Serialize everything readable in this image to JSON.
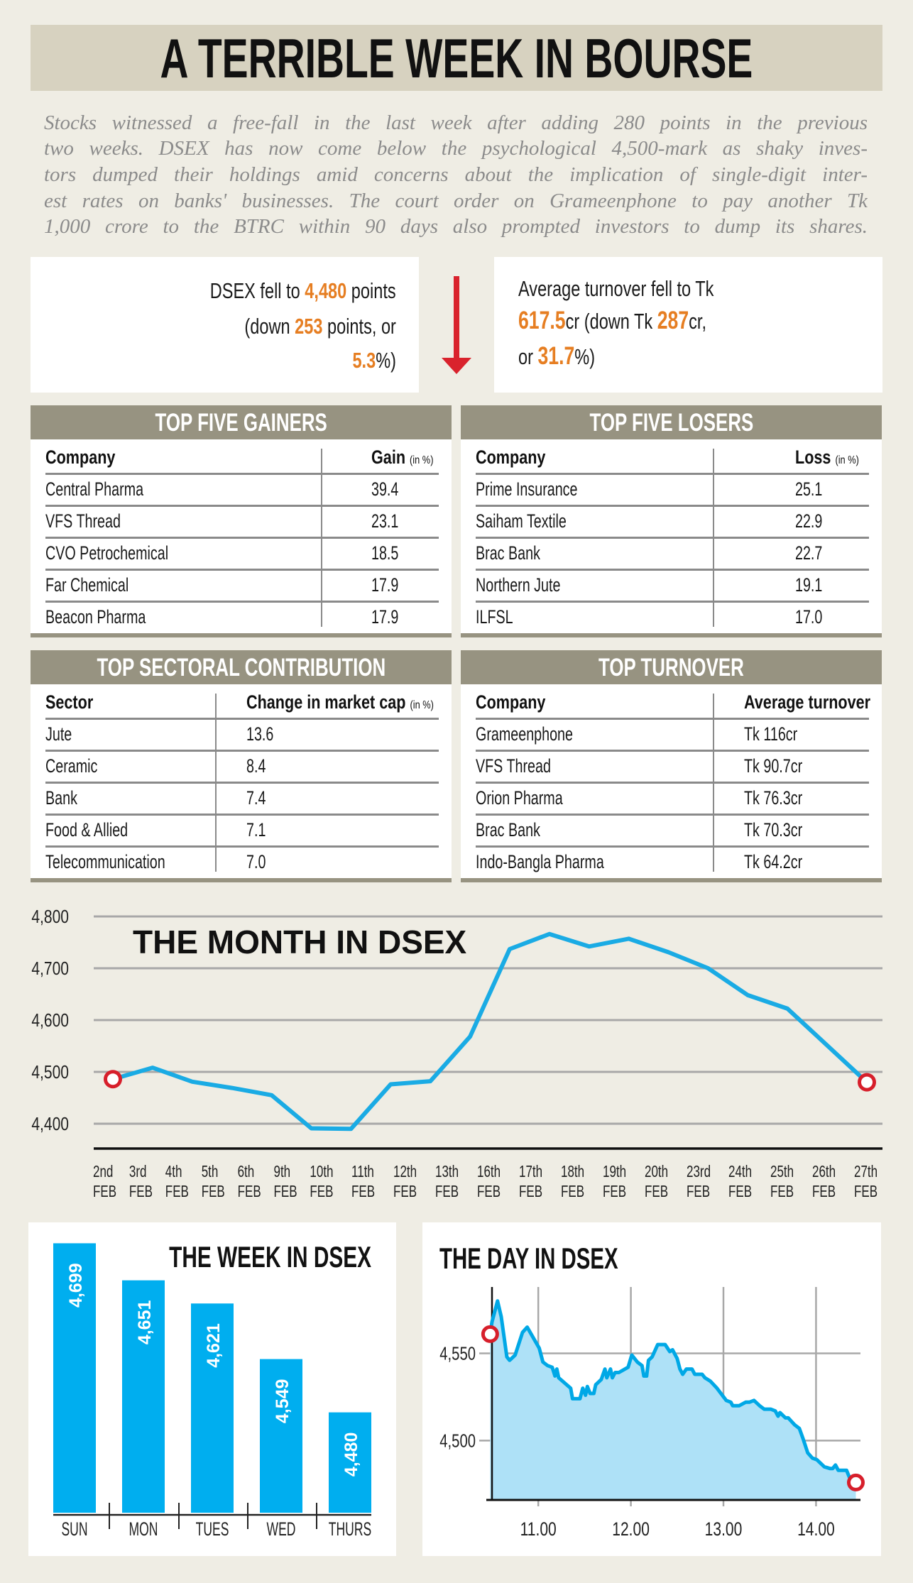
{
  "title": "A TERRIBLE WEEK IN BOURSE",
  "intro_lines": [
    "Stocks witnessed a free-fall in the last week after adding 280 points in the previous",
    "two weeks. DSEX has now come below the psychological 4,500-mark as shaky inves-",
    "tors dumped their holdings amid concerns about the implication of single-digit inter-",
    "est rates on banks' businesses. The court order on Grameenphone to pay another Tk",
    "1,000 crore to the BTRC within 90 days also prompted investors to dump its shares."
  ],
  "stats": {
    "dsex": {
      "l1_pre": "DSEX fell to ",
      "l1_num": "4,480",
      "l1_post": " points",
      "l2_pre": "(down ",
      "l2_num": "253",
      "l2_post": " points, or",
      "l3_num": "5.3",
      "l3_post": "%)"
    },
    "turnover": {
      "l1": "Average turnover fell to Tk",
      "l2_num1": "617.5",
      "l2_mid": "cr (down Tk ",
      "l2_num2": "287",
      "l2_post": "cr,",
      "l3_pre": "or ",
      "l3_num": "31.7",
      "l3_post": "%)"
    }
  },
  "tables": {
    "gainers": {
      "title": "TOP FIVE GAINERS",
      "col1": "Company",
      "col2": "Gain",
      "col2_unit": "(in %)",
      "rows": [
        {
          "name": "Central Pharma",
          "value": "39.4"
        },
        {
          "name": "VFS Thread",
          "value": "23.1"
        },
        {
          "name": "CVO Petrochemical",
          "value": "18.5"
        },
        {
          "name": "Far Chemical",
          "value": "17.9"
        },
        {
          "name": "Beacon Pharma",
          "value": "17.9"
        }
      ]
    },
    "losers": {
      "title": "TOP FIVE LOSERS",
      "col1": "Company",
      "col2": "Loss",
      "col2_unit": "(in %)",
      "rows": [
        {
          "name": "Prime Insurance",
          "value": "25.1"
        },
        {
          "name": "Saiham Textile",
          "value": "22.9"
        },
        {
          "name": "Brac Bank",
          "value": "22.7"
        },
        {
          "name": "Northern Jute",
          "value": "19.1"
        },
        {
          "name": "ILFSL",
          "value": "17.0"
        }
      ]
    },
    "sectoral": {
      "title": "TOP SECTORAL CONTRIBUTION",
      "col1": "Sector",
      "col2": "Change in market cap",
      "col2_unit": "(in %)",
      "rows": [
        {
          "name": "Jute",
          "value": "13.6"
        },
        {
          "name": "Ceramic",
          "value": "8.4"
        },
        {
          "name": "Bank",
          "value": "7.4"
        },
        {
          "name": "Food & Allied",
          "value": "7.1"
        },
        {
          "name": "Telecommunication",
          "value": "7.0"
        }
      ]
    },
    "turnover": {
      "title": "TOP TURNOVER",
      "col1": "Company",
      "col2": "Average turnover",
      "rows": [
        {
          "name": "Grameenphone",
          "value": "Tk 116cr"
        },
        {
          "name": "VFS Thread",
          "value": "Tk 90.7cr"
        },
        {
          "name": "Orion Pharma",
          "value": "Tk 76.3cr"
        },
        {
          "name": "Brac Bank",
          "value": "Tk 70.3cr"
        },
        {
          "name": "Indo-Bangla Pharma",
          "value": "Tk 64.2cr"
        }
      ]
    }
  },
  "colors": {
    "accent_orange": "#e67e22",
    "line_blue": "#1aabe4",
    "bar_blue": "#00aeef",
    "area_fill": "#aee1f7",
    "marker_red": "#d71f2b",
    "arrow_red": "#d9232d",
    "band_olive": "#979381"
  },
  "chart_data": [
    {
      "type": "line",
      "title": "THE MONTH IN DSEX",
      "x_labels": [
        {
          "day": "2nd",
          "month": "FEB"
        },
        {
          "day": "3rd",
          "month": "FEB"
        },
        {
          "day": "4th",
          "month": "FEB"
        },
        {
          "day": "5th",
          "month": "FEB"
        },
        {
          "day": "6th",
          "month": "FEB"
        },
        {
          "day": "9th",
          "month": "FEB"
        },
        {
          "day": "10th",
          "month": "FEB"
        },
        {
          "day": "11th",
          "month": "FEB"
        },
        {
          "day": "12th",
          "month": "FEB"
        },
        {
          "day": "13th",
          "month": "FEB"
        },
        {
          "day": "16th",
          "month": "FEB"
        },
        {
          "day": "17th",
          "month": "FEB"
        },
        {
          "day": "18th",
          "month": "FEB"
        },
        {
          "day": "19th",
          "month": "FEB"
        },
        {
          "day": "20th",
          "month": "FEB"
        },
        {
          "day": "23rd",
          "month": "FEB"
        },
        {
          "day": "24th",
          "month": "FEB"
        },
        {
          "day": "25th",
          "month": "FEB"
        },
        {
          "day": "26th",
          "month": "FEB"
        },
        {
          "day": "27th",
          "month": "FEB"
        }
      ],
      "values": [
        4486,
        4508,
        4481,
        4469,
        4455,
        4391,
        4390,
        4476,
        4482,
        4568,
        4737,
        4766,
        4742,
        4757,
        4731,
        4700,
        4648,
        4622,
        4551,
        4480
      ],
      "yticks": [
        4400,
        4500,
        4600,
        4700,
        4800
      ],
      "ytick_labels": [
        "4,400",
        "4,500",
        "4,600",
        "4,700",
        "4,800"
      ],
      "ylim": [
        4352,
        4800
      ],
      "grid": true,
      "markers": "first-and-last"
    },
    {
      "type": "bar",
      "title": "THE WEEK IN DSEX",
      "categories": [
        "SUN",
        "MON",
        "TUES",
        "WED",
        "THURS"
      ],
      "values": [
        4699,
        4651,
        4621,
        4549,
        4480
      ],
      "value_labels": [
        "4,699",
        "4,651",
        "4,621",
        "4,549",
        "4,480"
      ],
      "ylim": [
        4350,
        4715
      ]
    },
    {
      "type": "area",
      "title": "THE DAY IN DSEX",
      "x": [
        10.48,
        10.5,
        10.56,
        10.6,
        10.66,
        10.69,
        10.75,
        10.83,
        10.88,
        11.01,
        11.05,
        11.1,
        11.15,
        11.18,
        11.2,
        11.22,
        11.35,
        11.37,
        11.45,
        11.48,
        11.51,
        11.53,
        11.56,
        11.6,
        11.62,
        11.68,
        11.72,
        11.74,
        11.78,
        11.8,
        11.83,
        11.87,
        11.97,
        12.01,
        12.07,
        12.12,
        12.14,
        12.17,
        12.19,
        12.23,
        12.29,
        12.37,
        12.42,
        12.45,
        12.5,
        12.53,
        12.56,
        12.6,
        12.66,
        12.69,
        12.77,
        12.8,
        12.86,
        12.93,
        13.03,
        13.08,
        13.1,
        13.17,
        13.24,
        13.28,
        13.33,
        13.39,
        13.44,
        13.51,
        13.56,
        13.59,
        13.61,
        13.67,
        13.7,
        13.77,
        13.82,
        13.86,
        13.91,
        13.96,
        14.01,
        14.09,
        14.15,
        14.18,
        14.21,
        14.24,
        14.28,
        14.33,
        14.36,
        14.43
      ],
      "y": [
        4561,
        4568,
        4580,
        4571,
        4548,
        4546,
        4549,
        4562,
        4565,
        4553,
        4545,
        4543,
        4542,
        4537,
        4541,
        4536,
        4530,
        4524,
        4524,
        4530,
        4526,
        4531,
        4527,
        4527,
        4532,
        4535,
        4541,
        4536,
        4541,
        4536,
        4539,
        4539,
        4542,
        4549,
        4545,
        4543,
        4537,
        4537,
        4546,
        4548,
        4555,
        4555,
        4551,
        4552,
        4547,
        4541,
        4538,
        4541,
        4541,
        4538,
        4538,
        4536,
        4534,
        4530,
        4523,
        4522,
        4520,
        4520,
        4522,
        4522,
        4523,
        4520,
        4518,
        4518,
        4517,
        4514,
        4516,
        4513,
        4513,
        4509,
        4507,
        4501,
        4493,
        4490,
        4489,
        4485,
        4484,
        4484,
        4486,
        4483,
        4483,
        4483,
        4479,
        4476
      ],
      "xticks": [
        11,
        12,
        13,
        14
      ],
      "xtick_labels": [
        "11.00",
        "12.00",
        "13.00",
        "14.00"
      ],
      "yticks": [
        4500,
        4550
      ],
      "ytick_labels": [
        "4,500",
        "4,550"
      ],
      "xlim": [
        10.5,
        14.48
      ],
      "ylim": [
        4466,
        4588
      ],
      "grid": true,
      "markers": "first-and-last"
    }
  ]
}
